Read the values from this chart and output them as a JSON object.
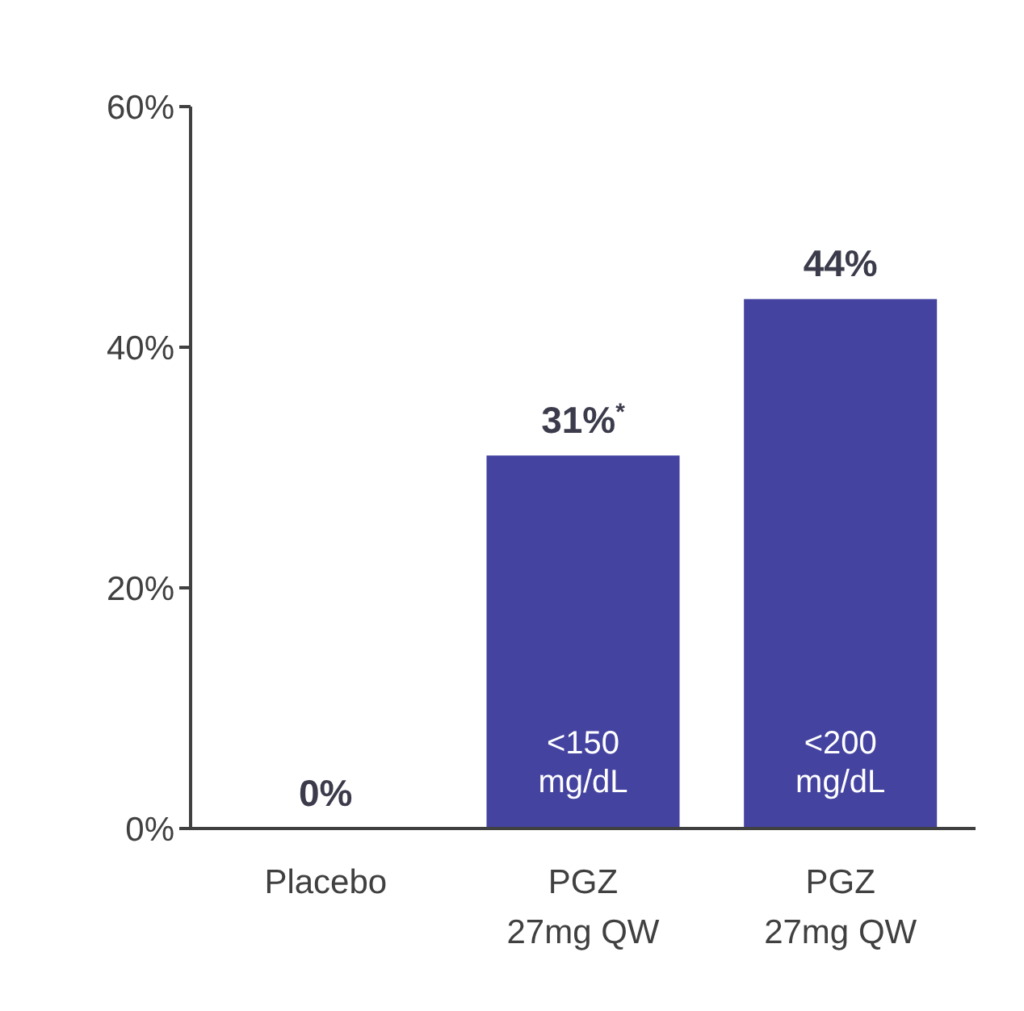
{
  "chart_data": {
    "type": "bar",
    "categories": [
      "Placebo",
      "PGZ\n27mg QW",
      "PGZ\n27mg QW"
    ],
    "values": [
      0,
      31,
      44
    ],
    "color": "#4443a0",
    "ylim": [
      0,
      60
    ],
    "yticks": [
      {
        "value": 0,
        "label": "0%"
      },
      {
        "value": 20,
        "label": "20%"
      },
      {
        "value": 40,
        "label": "40%"
      },
      {
        "value": 60,
        "label": "60%"
      }
    ],
    "value_labels": [
      "0%",
      "31%$^{*}$",
      "44%"
    ],
    "annotations": [
      "<150\nmg/dL",
      "<200\nmg/dL"
    ],
    "grid": false
  }
}
